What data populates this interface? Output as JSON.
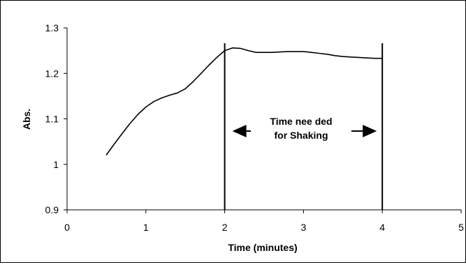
{
  "chart_data": {
    "type": "line",
    "title": "",
    "xlabel": "Time (minutes)",
    "ylabel": "Abs.",
    "xlim": [
      0,
      5
    ],
    "ylim": [
      0.9,
      1.3
    ],
    "x_ticks": [
      "0",
      "1",
      "2",
      "3",
      "4",
      "5"
    ],
    "y_ticks": [
      "0.9",
      "1",
      "1.1",
      "1.2",
      "1.3"
    ],
    "grid": false,
    "legend": "none",
    "series": [
      {
        "line_color": "#000000",
        "x": [
          0.5,
          0.6,
          0.7,
          0.8,
          0.9,
          1.0,
          1.1,
          1.2,
          1.3,
          1.4,
          1.5,
          1.6,
          1.7,
          1.8,
          1.9,
          2.0,
          2.1,
          2.2,
          2.3,
          2.4,
          2.5,
          2.6,
          2.7,
          2.8,
          2.9,
          3.0,
          3.1,
          3.2,
          3.3,
          3.4,
          3.5,
          3.6,
          3.7,
          3.8,
          3.9,
          4.0
        ],
        "y": [
          1.021,
          1.045,
          1.068,
          1.09,
          1.11,
          1.126,
          1.138,
          1.146,
          1.152,
          1.157,
          1.166,
          1.182,
          1.2,
          1.218,
          1.235,
          1.25,
          1.256,
          1.255,
          1.25,
          1.246,
          1.246,
          1.246,
          1.247,
          1.248,
          1.248,
          1.248,
          1.246,
          1.244,
          1.242,
          1.239,
          1.237,
          1.236,
          1.235,
          1.234,
          1.233,
          1.233
        ]
      }
    ],
    "markers": [
      {
        "x": 2
      },
      {
        "x": 4
      }
    ],
    "annotation": {
      "lines": [
        "Time nee ded",
        "for Shaking"
      ],
      "arrow": "double-headed",
      "spans": [
        2,
        4
      ]
    }
  }
}
